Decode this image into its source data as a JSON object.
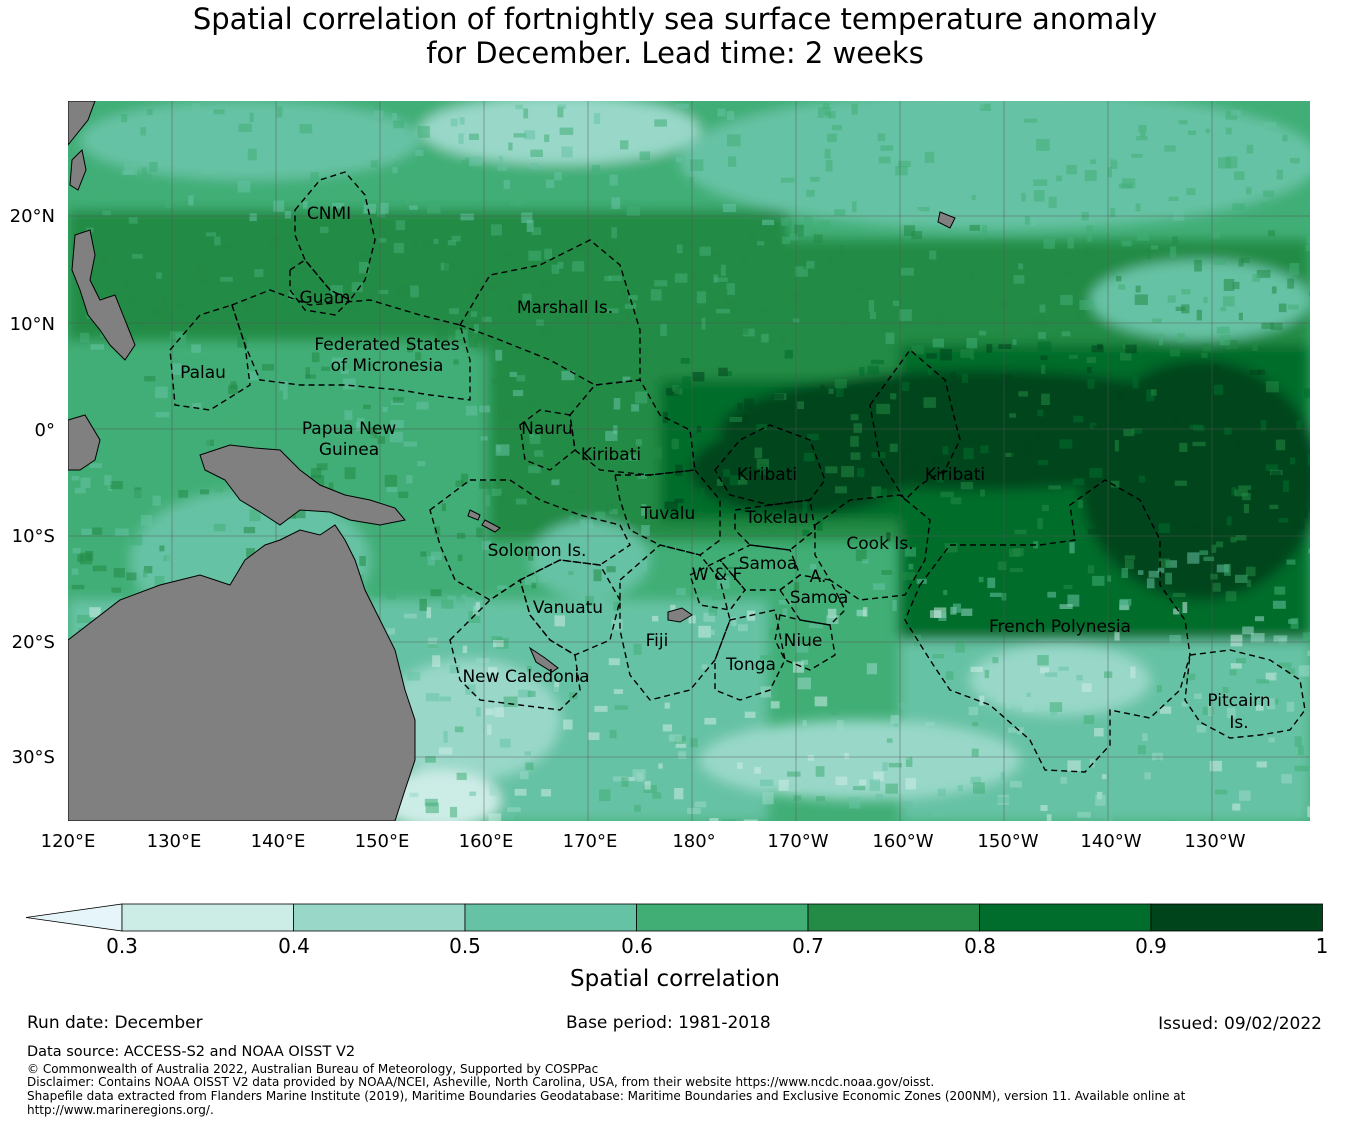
{
  "title": {
    "line1": "Spatial correlation of fortnightly sea surface temperature anomaly",
    "line2": "for December. Lead time: 2 weeks"
  },
  "map": {
    "lon_ticks": [
      "120°E",
      "130°E",
      "140°E",
      "150°E",
      "160°E",
      "170°E",
      "180°",
      "170°W",
      "160°W",
      "150°W",
      "140°W",
      "130°W"
    ],
    "lat_ticks": [
      "20°N",
      "10°N",
      "0°",
      "10°S",
      "20°S",
      "30°S"
    ],
    "region_labels": [
      {
        "id": "cnmi",
        "text": "CNMI"
      },
      {
        "id": "guam",
        "text": "Guam"
      },
      {
        "id": "marshall",
        "text": "Marshall Is."
      },
      {
        "id": "fsm1",
        "text": "Federated States"
      },
      {
        "id": "fsm2",
        "text": "of Micronesia"
      },
      {
        "id": "palau",
        "text": "Palau"
      },
      {
        "id": "png1",
        "text": "Papua New"
      },
      {
        "id": "png2",
        "text": "Guinea"
      },
      {
        "id": "nauru",
        "text": "Nauru"
      },
      {
        "id": "kiribati_w",
        "text": "Kiribati"
      },
      {
        "id": "kiribati_c",
        "text": "Kiribati"
      },
      {
        "id": "kiribati_e",
        "text": "Kiribati"
      },
      {
        "id": "tuvalu",
        "text": "Tuvalu"
      },
      {
        "id": "tokelau",
        "text": "Tokelau"
      },
      {
        "id": "cook",
        "text": "Cook Is."
      },
      {
        "id": "solomon",
        "text": "Solomon Is."
      },
      {
        "id": "samoa",
        "text": "Samoa"
      },
      {
        "id": "wf",
        "text": "W & F"
      },
      {
        "id": "asamoa1",
        "text": "A."
      },
      {
        "id": "asamoa2",
        "text": "Samoa"
      },
      {
        "id": "vanuatu",
        "text": "Vanuatu"
      },
      {
        "id": "fiji",
        "text": "Fiji"
      },
      {
        "id": "niue",
        "text": "Niue"
      },
      {
        "id": "tonga",
        "text": "Tonga"
      },
      {
        "id": "frpoly",
        "text": "French Polynesia"
      },
      {
        "id": "newcal",
        "text": "New Caledonia"
      },
      {
        "id": "pitcairn1",
        "text": "Pitcairn"
      },
      {
        "id": "pitcairn2",
        "text": "Is."
      }
    ]
  },
  "colorbar": {
    "ticks": [
      "0.3",
      "0.4",
      "0.5",
      "0.6",
      "0.7",
      "0.8",
      "0.9",
      "1"
    ],
    "colors": [
      "#e5f5f9",
      "#ccece6",
      "#99d8c9",
      "#66c2a4",
      "#41ae76",
      "#238b45",
      "#006d2c",
      "#00441b"
    ],
    "label": "Spatial correlation"
  },
  "meta": {
    "run_date": "Run date: December",
    "base_period": "Base period: 1981-2018",
    "issued": "Issued: 09/02/2022",
    "data_source": "Data source: ACCESS-S2 and NOAA OISST V2",
    "copyright": "© Commonwealth of Australia 2022, Australian Bureau of Meteorology, Supported by COSPPac",
    "disclaimer": "Disclaimer: Contains NOAA OISST V2 data provided by NOAA/NCEI, Asheville, North Carolina, USA, from their website https://www.ncdc.noaa.gov/oisst.",
    "shapefile1": "Shapefile data extracted from Flanders Marine Institute (2019), Maritime Boundaries Geodatabase: Maritime Boundaries and Exclusive Economic Zones (200NM), version 11. Available online at",
    "shapefile2": "http://www.marineregions.org/."
  },
  "colors": {
    "land": "#808080",
    "grid": "#444444"
  }
}
